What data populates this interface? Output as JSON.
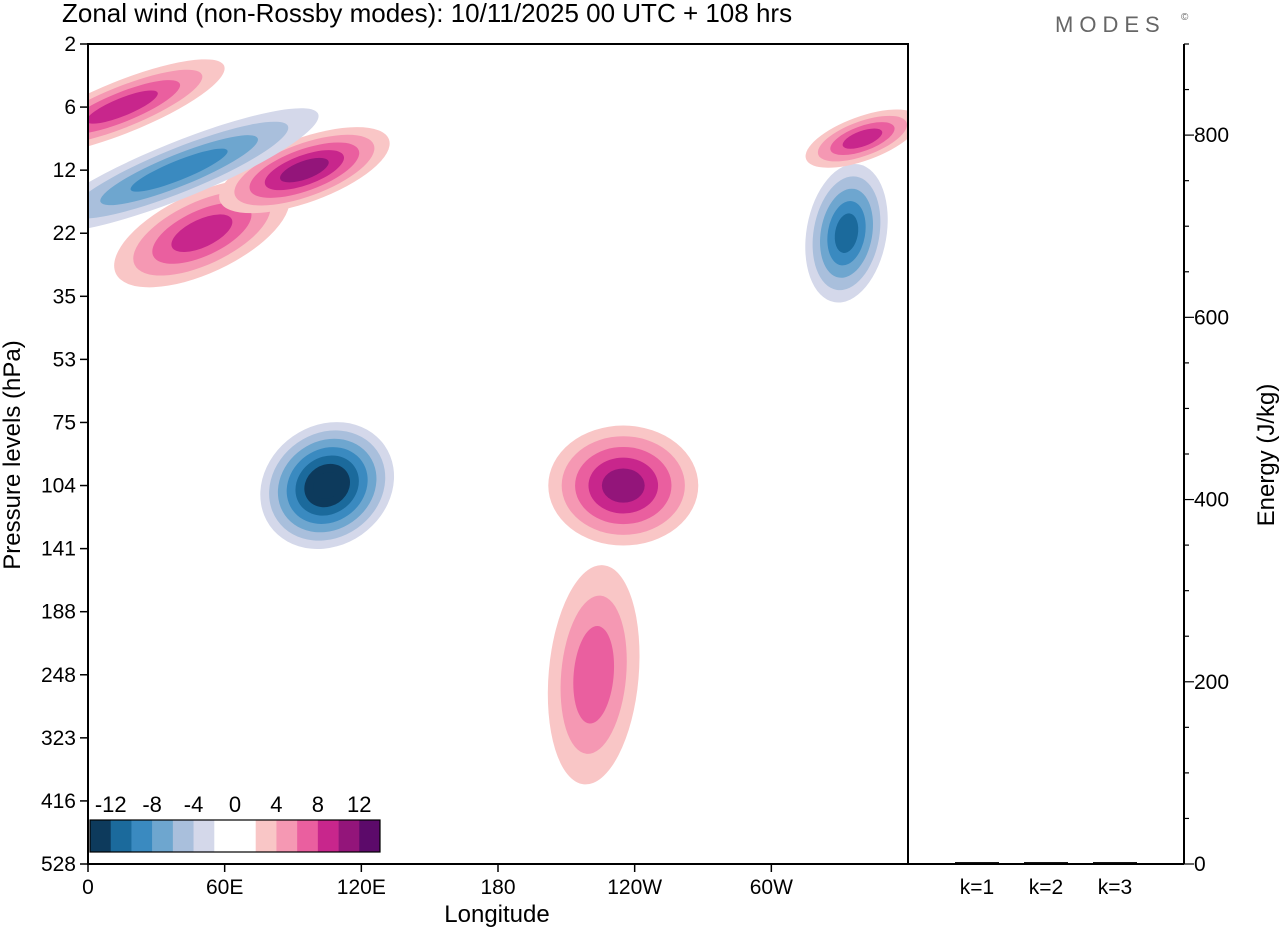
{
  "header": {
    "title": "Zonal wind (non-Rossby modes):  10/11/2025  00 UTC  + 108 hrs",
    "brand": "MODES",
    "brand_mark": "©"
  },
  "chart_data": [
    {
      "type": "heatmap",
      "title": "Zonal wind (non-Rossby modes):  10/11/2025  00 UTC  + 108 hrs",
      "xlabel": "Longitude",
      "ylabel": "Pressure levels (hPa)",
      "x_ticks": [
        "0",
        "60E",
        "120E",
        "180",
        "120W",
        "60W"
      ],
      "x_tick_values": [
        0,
        60,
        120,
        180,
        240,
        300
      ],
      "xlim": [
        0,
        360
      ],
      "y_ticks": [
        "2",
        "6",
        "12",
        "22",
        "35",
        "53",
        "75",
        "104",
        "141",
        "188",
        "248",
        "323",
        "416",
        "528"
      ],
      "colorbar": {
        "labels": [
          "-12",
          "-8",
          "-4",
          "0",
          "4",
          "8",
          "12"
        ],
        "colors": [
          "#0d3a5c",
          "#1b6a9c",
          "#3a8ac0",
          "#6ea6cf",
          "#a9bfdc",
          "#d4d8ea",
          "#ffffff",
          "#ffffff",
          "#f9c6c6",
          "#f598b3",
          "#ea5f9f",
          "#c8268c",
          "#93157a",
          "#5c0a6a"
        ]
      },
      "features": [
        {
          "name": "jet-core-negative",
          "sign": -1,
          "lon": 105,
          "level": "104",
          "magnitude": 14
        },
        {
          "name": "jet-positive-upper",
          "sign": 1,
          "lon": 50,
          "level": "22",
          "magnitude": 8
        },
        {
          "name": "jet-positive-high",
          "sign": 1,
          "lon": 95,
          "level": "12",
          "magnitude": 9
        },
        {
          "name": "stratosphere-positive",
          "sign": 1,
          "lon": 15,
          "level": "6",
          "magnitude": 7
        },
        {
          "name": "stratosphere-negative",
          "sign": -1,
          "lon": 40,
          "level": "12",
          "magnitude": 7
        },
        {
          "name": "east-pacific-positive",
          "sign": 1,
          "lon": 235,
          "level": "104",
          "magnitude": 9
        },
        {
          "name": "lower-positive",
          "sign": 1,
          "lon": 222,
          "level": "248",
          "magnitude": 6
        },
        {
          "name": "west-atlantic-negative",
          "sign": -1,
          "lon": 333,
          "level": "22",
          "magnitude": 9
        },
        {
          "name": "atlantic-positive",
          "sign": 1,
          "lon": 340,
          "level": "8",
          "magnitude": 7
        }
      ]
    },
    {
      "type": "bar",
      "title": "",
      "xlabel": "",
      "ylabel": "Energy (J/kg)",
      "categories": [
        "k=1",
        "k=2",
        "k=3"
      ],
      "values": [
        1,
        1,
        1
      ],
      "ylim": [
        0,
        900
      ],
      "y_ticks": [
        "0",
        "200",
        "400",
        "600",
        "800"
      ],
      "y_tick_values": [
        0,
        200,
        400,
        600,
        800
      ]
    }
  ]
}
